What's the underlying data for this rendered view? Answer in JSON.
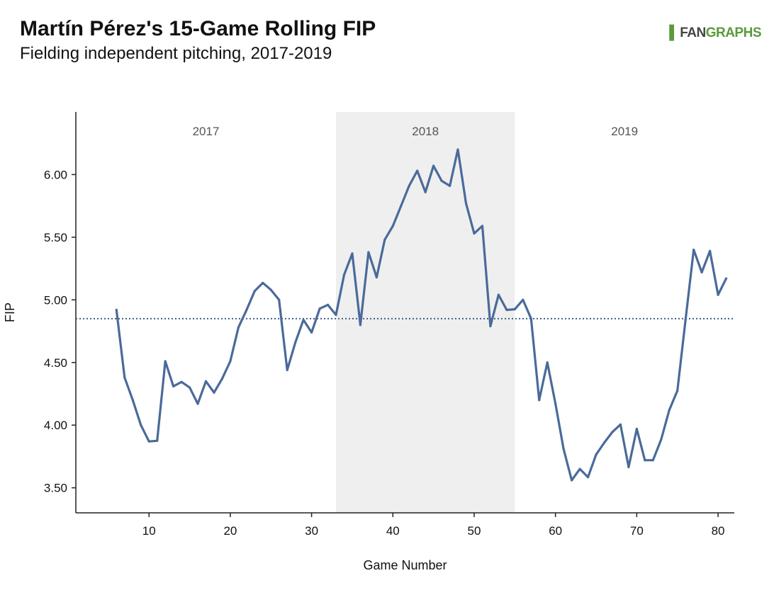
{
  "header": {
    "title": "Martín Pérez's 15-Game Rolling FIP",
    "subtitle": "Fielding independent pitching, 2017-2019"
  },
  "logo": {
    "mark": "▌",
    "fan": "FAN",
    "graphs": "GRAPHS"
  },
  "colors": {
    "line": "#4a6a9a",
    "shade": "#efefef",
    "ref_line": "#3f5f88",
    "axis": "#222222",
    "region_label": "#555555"
  },
  "chart_data": {
    "type": "line",
    "xlabel": "Game Number",
    "ylabel": "FIP",
    "xlim": [
      1,
      82
    ],
    "ylim": [
      3.3,
      6.5
    ],
    "x_ticks": [
      10,
      20,
      30,
      40,
      50,
      60,
      70,
      80
    ],
    "y_ticks": [
      3.5,
      4.0,
      4.5,
      5.0,
      5.5,
      6.0
    ],
    "y_tick_labels": [
      "3.50",
      "4.00",
      "4.50",
      "5.00",
      "5.50",
      "6.00"
    ],
    "grid": false,
    "reference_line": {
      "y": 4.85,
      "style": "dotted"
    },
    "regions": [
      {
        "label": "2017",
        "x_start": 1,
        "x_end": 33,
        "shaded": false
      },
      {
        "label": "2018",
        "x_start": 33,
        "x_end": 55,
        "shaded": true
      },
      {
        "label": "2019",
        "x_start": 55,
        "x_end": 82,
        "shaded": false
      }
    ],
    "series": [
      {
        "x": [
          6,
          7,
          8,
          9,
          10,
          11,
          12,
          13,
          14,
          15,
          16,
          17,
          18,
          19,
          20,
          21,
          22,
          23,
          24,
          25,
          26,
          27,
          28,
          29,
          30,
          31,
          32,
          33,
          34,
          35,
          36,
          37,
          38,
          39,
          40,
          41,
          42,
          43,
          44,
          45,
          46,
          47,
          48,
          49,
          50,
          51,
          52,
          53,
          54,
          55,
          56,
          57,
          58,
          59,
          60,
          61,
          62,
          63,
          64,
          65,
          66,
          67,
          68,
          69,
          70,
          71,
          72,
          73,
          74,
          75,
          76,
          77,
          78,
          79,
          80,
          81
        ],
        "y": [
          4.92,
          4.38,
          4.2,
          4.0,
          3.87,
          3.875,
          4.51,
          4.31,
          4.345,
          4.3,
          4.17,
          4.35,
          4.26,
          4.37,
          4.51,
          4.78,
          4.92,
          5.07,
          5.135,
          5.08,
          5.0,
          4.44,
          4.66,
          4.84,
          4.74,
          4.93,
          4.96,
          4.88,
          5.2,
          5.37,
          4.8,
          5.38,
          5.18,
          5.48,
          5.59,
          5.75,
          5.91,
          6.03,
          5.86,
          6.07,
          5.95,
          5.91,
          6.2,
          5.77,
          5.53,
          5.59,
          4.79,
          5.04,
          4.92,
          4.925,
          5.0,
          4.85,
          4.2,
          4.5,
          4.17,
          3.81,
          3.56,
          3.65,
          3.585,
          3.765,
          3.86,
          3.945,
          4.005,
          3.665,
          3.97,
          3.72,
          3.72,
          3.885,
          4.12,
          4.275,
          4.84,
          5.4,
          5.22,
          5.39,
          5.04,
          5.17
        ]
      }
    ]
  }
}
